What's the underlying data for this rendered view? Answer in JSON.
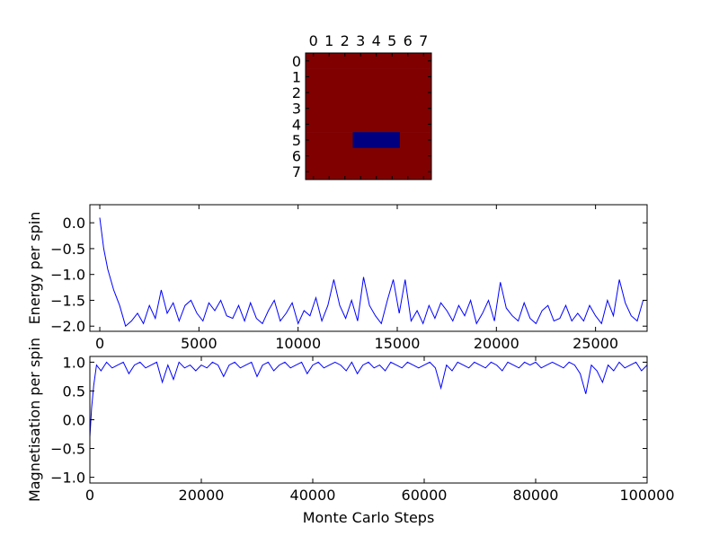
{
  "chart_data": [
    {
      "type": "heatmap",
      "rows": 8,
      "cols": 8,
      "x_ticks": [
        "0",
        "1",
        "2",
        "3",
        "4",
        "5",
        "6",
        "7"
      ],
      "y_ticks": [
        "0",
        "1",
        "2",
        "3",
        "4",
        "5",
        "6",
        "7"
      ],
      "colors": {
        "up": "#800000",
        "down": "#000080"
      },
      "values": [
        [
          1,
          1,
          1,
          1,
          1,
          1,
          1,
          1
        ],
        [
          1,
          1,
          1,
          1,
          1,
          1,
          1,
          1
        ],
        [
          1,
          1,
          1,
          1,
          1,
          1,
          1,
          1
        ],
        [
          1,
          1,
          1,
          1,
          1,
          1,
          1,
          1
        ],
        [
          1,
          1,
          1,
          1,
          1,
          1,
          1,
          1
        ],
        [
          1,
          1,
          1,
          -1,
          -1,
          -1,
          1,
          1
        ],
        [
          1,
          1,
          1,
          1,
          1,
          1,
          1,
          1
        ],
        [
          1,
          1,
          1,
          1,
          1,
          1,
          1,
          1
        ]
      ]
    },
    {
      "type": "line",
      "ylabel": "Energy per spin",
      "xlim": [
        -500,
        27600
      ],
      "ylim": [
        -2.1,
        0.35
      ],
      "x_ticks": [
        "0",
        "5000",
        "10000",
        "15000",
        "20000",
        "25000"
      ],
      "x_tick_values": [
        0,
        5000,
        10000,
        15000,
        20000,
        25000
      ],
      "y_ticks": [
        "0.0",
        "−0.5",
        "−1.0",
        "−1.5",
        "−2.0"
      ],
      "y_tick_values": [
        0,
        -0.5,
        -1,
        -1.5,
        -2
      ],
      "line_color": "#0000ff",
      "series": [
        {
          "x": [
            0,
            200,
            400,
            700,
            1000,
            1300,
            1600,
            1900,
            2200,
            2500,
            2800,
            3100,
            3400,
            3700,
            4000,
            4300,
            4600,
            4900,
            5200,
            5500,
            5800,
            6100,
            6400,
            6700,
            7000,
            7300,
            7600,
            7900,
            8200,
            8500,
            8800,
            9100,
            9400,
            9700,
            10000,
            10300,
            10600,
            10900,
            11200,
            11500,
            11800,
            12100,
            12400,
            12700,
            13000,
            13300,
            13600,
            13900,
            14200,
            14500,
            14800,
            15100,
            15400,
            15700,
            16000,
            16300,
            16600,
            16900,
            17200,
            17500,
            17800,
            18100,
            18400,
            18700,
            19000,
            19300,
            19600,
            19900,
            20200,
            20500,
            20800,
            21100,
            21400,
            21700,
            22000,
            22300,
            22600,
            22900,
            23200,
            23500,
            23800,
            24100,
            24400,
            24700,
            25000,
            25300,
            25600,
            25900,
            26200,
            26500,
            26800,
            27100,
            27400
          ],
          "y": [
            0.1,
            -0.5,
            -0.9,
            -1.3,
            -1.6,
            -2.0,
            -1.9,
            -1.75,
            -1.95,
            -1.6,
            -1.85,
            -1.3,
            -1.75,
            -1.55,
            -1.9,
            -1.6,
            -1.5,
            -1.75,
            -1.9,
            -1.55,
            -1.7,
            -1.5,
            -1.8,
            -1.85,
            -1.6,
            -1.9,
            -1.55,
            -1.85,
            -1.95,
            -1.7,
            -1.5,
            -1.9,
            -1.75,
            -1.55,
            -1.95,
            -1.7,
            -1.8,
            -1.45,
            -1.9,
            -1.6,
            -1.1,
            -1.6,
            -1.85,
            -1.5,
            -1.9,
            -1.05,
            -1.6,
            -1.8,
            -1.95,
            -1.5,
            -1.1,
            -1.75,
            -1.1,
            -1.9,
            -1.7,
            -1.95,
            -1.6,
            -1.85,
            -1.55,
            -1.7,
            -1.9,
            -1.6,
            -1.8,
            -1.5,
            -1.95,
            -1.75,
            -1.5,
            -1.9,
            -1.15,
            -1.65,
            -1.8,
            -1.9,
            -1.55,
            -1.85,
            -1.95,
            -1.7,
            -1.6,
            -1.9,
            -1.85,
            -1.6,
            -1.9,
            -1.75,
            -1.9,
            -1.6,
            -1.8,
            -1.95,
            -1.5,
            -1.8,
            -1.1,
            -1.55,
            -1.8,
            -1.9,
            -1.5
          ]
        }
      ]
    },
    {
      "type": "line",
      "xlabel": "Monte Carlo Steps",
      "ylabel": "Magnetisation per spin",
      "xlim": [
        0,
        100000
      ],
      "ylim": [
        -1.1,
        1.1
      ],
      "x_ticks": [
        "0",
        "20000",
        "40000",
        "60000",
        "80000",
        "100000"
      ],
      "x_tick_values": [
        0,
        20000,
        40000,
        60000,
        80000,
        100000
      ],
      "y_ticks": [
        "1.0",
        "0.5",
        "0.0",
        "−0.5",
        "−1.0"
      ],
      "y_tick_values": [
        1,
        0.5,
        0,
        -0.5,
        -1
      ],
      "line_color": "#0000ff",
      "series": [
        {
          "x": [
            0,
            300,
            700,
            1200,
            2000,
            3000,
            4000,
            5000,
            6000,
            7000,
            8000,
            9000,
            10000,
            11000,
            12000,
            13000,
            14000,
            15000,
            16000,
            17000,
            18000,
            19000,
            20000,
            21000,
            22000,
            23000,
            24000,
            25000,
            26000,
            27000,
            28000,
            29000,
            30000,
            31000,
            32000,
            33000,
            34000,
            35000,
            36000,
            37000,
            38000,
            39000,
            40000,
            41000,
            42000,
            43000,
            44000,
            45000,
            46000,
            47000,
            48000,
            49000,
            50000,
            51000,
            52000,
            53000,
            54000,
            55000,
            56000,
            57000,
            58000,
            59000,
            60000,
            61000,
            62000,
            63000,
            64000,
            65000,
            66000,
            67000,
            68000,
            69000,
            70000,
            71000,
            72000,
            73000,
            74000,
            75000,
            76000,
            77000,
            78000,
            79000,
            80000,
            81000,
            82000,
            83000,
            84000,
            85000,
            86000,
            87000,
            88000,
            89000,
            90000,
            91000,
            92000,
            93000,
            94000,
            95000,
            96000,
            97000,
            98000,
            99000,
            100000
          ],
          "y": [
            -0.3,
            0.2,
            0.6,
            0.95,
            0.85,
            1.0,
            0.9,
            0.95,
            1.0,
            0.8,
            0.95,
            1.0,
            0.9,
            0.95,
            1.0,
            0.65,
            0.95,
            0.7,
            1.0,
            0.9,
            0.95,
            0.85,
            0.95,
            0.9,
            1.0,
            0.95,
            0.75,
            0.95,
            1.0,
            0.9,
            0.95,
            1.0,
            0.75,
            0.95,
            1.0,
            0.85,
            0.95,
            1.0,
            0.9,
            0.95,
            1.0,
            0.8,
            0.95,
            1.0,
            0.9,
            0.95,
            1.0,
            0.95,
            0.85,
            1.0,
            0.8,
            0.95,
            1.0,
            0.9,
            0.95,
            0.85,
            1.0,
            0.95,
            0.9,
            1.0,
            0.95,
            0.9,
            0.95,
            1.0,
            0.9,
            0.55,
            0.95,
            0.85,
            1.0,
            0.95,
            0.9,
            1.0,
            0.95,
            0.9,
            1.0,
            0.95,
            0.85,
            1.0,
            0.95,
            0.9,
            1.0,
            0.95,
            1.0,
            0.9,
            0.95,
            1.0,
            0.95,
            0.9,
            1.0,
            0.95,
            0.8,
            0.45,
            0.95,
            0.85,
            0.65,
            0.95,
            0.85,
            1.0,
            0.9,
            0.95,
            1.0,
            0.85,
            0.95
          ]
        }
      ]
    }
  ]
}
